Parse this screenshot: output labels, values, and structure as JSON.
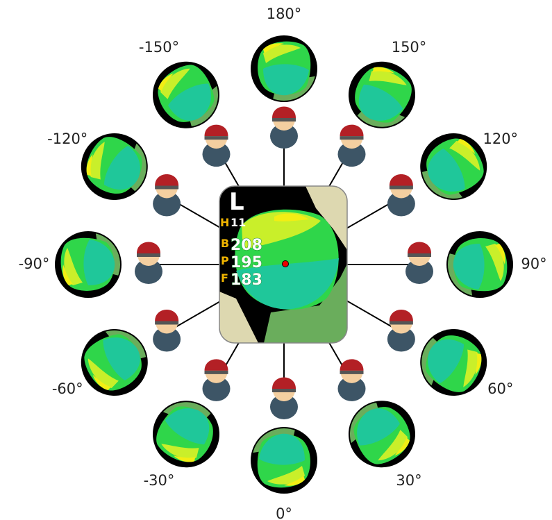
{
  "card": {
    "side": "L",
    "hole_label": "H",
    "hole": "11",
    "back_label": "B",
    "back": "208",
    "pin_label": "P",
    "pin": "195",
    "front_label": "F",
    "front": "183"
  },
  "views": [
    "180°",
    "150°",
    "120°",
    "90°",
    "60°",
    "30°",
    "0°",
    "-30°",
    "-60°",
    "-90°",
    "-120°",
    "-150°"
  ]
}
